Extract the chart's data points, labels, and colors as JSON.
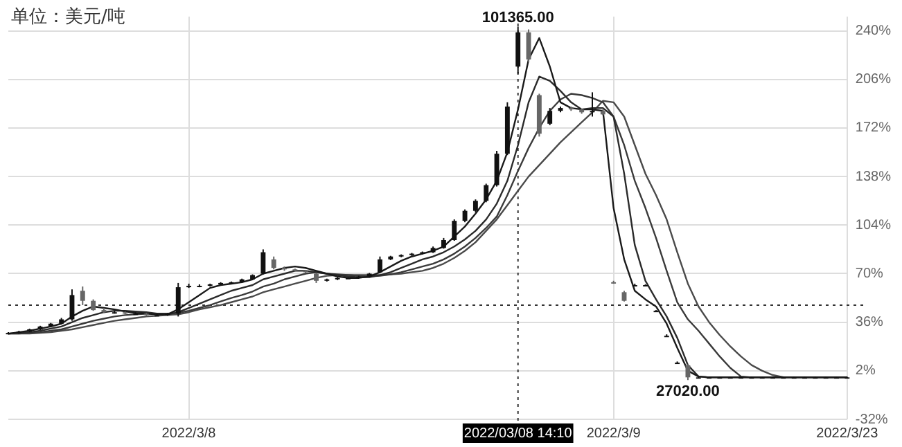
{
  "chart_data": {
    "type": "candlestick",
    "colors": [
      "#111111",
      "#111111",
      "#111111",
      "#111111",
      "#111111",
      "#111111",
      "#111111",
      "#666666",
      "#666666",
      "#666666",
      "#111111",
      "#666666",
      "#111111",
      "#666666",
      "#111111",
      "#111111",
      "#111111",
      "#111111",
      "#111111",
      "#111111",
      "#111111",
      "#111111",
      "#111111",
      "#111111",
      "#111111",
      "#666666",
      "#666666",
      "#666666",
      "#666666",
      "#666666",
      "#111111",
      "#111111",
      "#111111",
      "#111111",
      "#111111",
      "#111111",
      "#111111",
      "#111111",
      "#111111",
      "#111111",
      "#111111",
      "#111111",
      "#111111",
      "#111111",
      "#111111",
      "#111111",
      "#111111",
      "#111111",
      "#111111",
      "#666666",
      "#666666",
      "#111111",
      "#111111",
      "#666666",
      "#666666",
      "#111111",
      "#666666",
      "#666666",
      "#666666",
      "#111111",
      "#111111",
      "#111111",
      "#111111",
      "#111111",
      "#666666",
      "#111111",
      "#111111",
      "#111111",
      "#111111",
      "#111111",
      "#111111",
      "#111111",
      "#111111",
      "#111111",
      "#111111",
      "#111111",
      "#111111",
      "#111111",
      "#111111",
      "#111111"
    ],
    "categories": [
      null,
      null,
      null,
      null,
      null,
      null,
      null,
      null,
      null,
      null,
      null,
      null,
      null,
      null,
      null,
      null,
      null,
      "2022/3/8",
      null,
      null,
      null,
      null,
      null,
      null,
      null,
      null,
      null,
      null,
      null,
      null,
      null,
      null,
      null,
      null,
      null,
      null,
      null,
      null,
      null,
      null,
      null,
      null,
      null,
      null,
      null,
      null,
      null,
      null,
      "2022/03/08 14:10",
      null,
      null,
      null,
      null,
      null,
      null,
      null,
      null,
      "2022/3/9",
      null,
      null,
      null,
      null,
      null,
      null,
      null,
      null,
      null,
      null,
      null,
      null,
      null,
      null,
      null,
      null,
      null,
      null,
      null,
      null,
      null,
      "2022/3/23"
    ],
    "ohlc": [
      [
        28,
        29,
        27.5,
        28.5
      ],
      [
        28.5,
        30,
        28,
        29.5
      ],
      [
        29.5,
        31.5,
        29,
        31
      ],
      [
        31,
        33.5,
        30.5,
        33
      ],
      [
        33,
        35.5,
        32.5,
        35
      ],
      [
        35,
        39,
        34.5,
        38
      ],
      [
        38,
        59,
        37,
        55
      ],
      [
        58,
        61,
        48,
        51
      ],
      [
        51,
        52,
        44,
        44.5
      ],
      [
        44.5,
        46,
        42.5,
        43
      ],
      [
        43,
        44,
        42,
        43
      ],
      [
        43,
        43.5,
        41.5,
        42
      ],
      [
        42,
        43,
        41.5,
        42
      ],
      [
        42,
        42.5,
        40.5,
        41
      ],
      [
        41,
        42,
        40.5,
        41
      ],
      [
        41,
        42.5,
        40.5,
        42
      ],
      [
        42,
        63.5,
        40,
        60.5
      ],
      [
        60.5,
        63,
        60,
        61.5
      ],
      [
        61.5,
        62.5,
        60.5,
        61.5
      ],
      [
        61.5,
        63,
        61,
        62.5
      ],
      [
        62.5,
        64,
        62,
        63.5
      ],
      [
        63.5,
        64.5,
        63,
        64
      ],
      [
        64,
        66.5,
        63.5,
        66
      ],
      [
        66,
        69.5,
        65.5,
        69
      ],
      [
        70,
        87,
        69.5,
        85
      ],
      [
        80,
        82,
        73,
        74
      ],
      [
        74,
        75,
        72,
        73
      ],
      [
        73,
        73.5,
        71.5,
        72
      ],
      [
        72,
        72.5,
        70.5,
        71
      ],
      [
        70,
        70.5,
        63.5,
        65
      ],
      [
        65,
        66.5,
        64.5,
        66
      ],
      [
        66,
        67.5,
        65.5,
        67
      ],
      [
        67,
        67.5,
        66.5,
        67
      ],
      [
        67,
        68.5,
        66.5,
        68
      ],
      [
        68,
        70.5,
        67.5,
        70
      ],
      [
        71,
        82,
        70.5,
        80
      ],
      [
        80,
        82.5,
        79.5,
        82
      ],
      [
        82,
        83.5,
        81.5,
        83
      ],
      [
        83,
        84.5,
        82.5,
        84
      ],
      [
        84,
        85.5,
        83.5,
        85
      ],
      [
        85,
        89,
        84.5,
        88
      ],
      [
        88,
        95,
        87.5,
        93.5
      ],
      [
        93.5,
        108,
        93,
        107
      ],
      [
        107,
        115,
        106,
        114
      ],
      [
        114,
        122,
        113,
        121
      ],
      [
        121,
        133,
        120,
        132
      ],
      [
        132,
        156,
        131,
        154
      ],
      [
        154,
        190,
        153,
        187
      ],
      [
        215,
        243,
        210,
        239
      ],
      [
        239,
        241,
        218,
        220
      ],
      [
        195,
        196,
        166,
        168
      ],
      [
        175,
        186,
        174,
        184
      ],
      [
        184,
        187,
        183,
        186
      ],
      [
        186,
        187,
        184,
        185
      ],
      [
        185,
        185.5,
        182,
        183
      ],
      [
        183,
        197,
        180,
        184
      ],
      [
        184,
        185,
        181,
        181.5
      ],
      [
        64,
        65,
        63,
        63.5
      ],
      [
        57,
        58,
        50.5,
        51
      ],
      [
        62,
        63,
        61.5,
        62
      ],
      [
        62,
        62.5,
        61.5,
        62
      ],
      [
        44,
        44.5,
        43.5,
        44
      ],
      [
        26.5,
        27.5,
        26,
        26.5
      ],
      [
        7.7,
        8.5,
        7,
        7.7
      ],
      [
        5.8,
        6.5,
        -4.5,
        -2.6
      ],
      [
        -2.6,
        -2.2,
        -3,
        -2.6
      ],
      [
        -2.6,
        -2.2,
        -3,
        -2.6
      ],
      [
        -2.6,
        -2.2,
        -3,
        -2.6
      ],
      [
        -2.6,
        -2.2,
        -3,
        -2.6
      ],
      [
        -2.6,
        -2.2,
        -3,
        -2.6
      ],
      [
        -2.6,
        -2.2,
        -3,
        -2.6
      ],
      [
        -2.6,
        -2.2,
        -3,
        -2.6
      ],
      [
        -2.6,
        -2.2,
        -3,
        -2.6
      ],
      [
        -2.6,
        -2.2,
        -3,
        -2.6
      ],
      [
        -2.6,
        -2.2,
        -3,
        -2.6
      ],
      [
        -2.6,
        -2.2,
        -3,
        -2.6
      ],
      [
        -2.6,
        -2.2,
        -3,
        -2.6
      ],
      [
        -2.6,
        -2.2,
        -3,
        -2.6
      ],
      [
        -2.6,
        -2.2,
        -3,
        -2.6
      ],
      [
        -2.6,
        -2.2,
        -3,
        -2.6
      ]
    ],
    "series": [
      {
        "type": "line",
        "color": "#1a1a1a",
        "values": [
          28,
          29,
          30,
          31.5,
          33,
          35,
          40,
          44,
          47,
          46,
          45,
          43.5,
          42.5,
          42,
          41.5,
          41.5,
          45,
          50,
          55,
          60,
          62,
          63,
          64,
          66,
          70,
          72,
          74,
          75,
          74,
          72,
          70,
          68,
          67,
          67,
          68,
          71,
          75,
          79,
          82,
          84,
          86,
          89,
          96,
          103,
          112,
          122,
          135,
          155,
          185,
          220,
          235,
          215,
          190,
          186,
          185,
          185,
          184,
          116,
          80,
          58,
          52,
          47,
          35,
          18,
          2,
          -2,
          -2.6,
          -2.6,
          -2.6,
          -2.6,
          -2.6,
          -2.6,
          -2.6,
          -2.6,
          -2.6,
          -2.6,
          -2.6,
          -2.6,
          -2.6,
          -2.6
        ]
      },
      {
        "type": "line",
        "color": "#2b2b2b",
        "values": [
          28,
          28.5,
          29,
          30,
          31.5,
          33,
          36,
          39,
          41,
          43,
          44,
          44,
          43.5,
          43,
          42,
          41.5,
          43,
          46,
          49,
          52,
          55,
          58,
          60,
          62,
          66,
          68,
          70,
          72,
          72,
          71,
          70,
          69,
          68,
          67.5,
          67.5,
          69,
          71,
          74,
          77,
          80,
          82,
          85,
          89,
          94,
          100,
          108,
          119,
          135,
          160,
          190,
          208,
          205,
          198,
          190,
          185,
          186,
          186,
          180,
          140,
          90,
          65,
          52,
          40,
          25,
          6,
          -2,
          -2.6,
          -2.6,
          -2.6,
          -2.6,
          -2.6,
          -2.6,
          -2.6,
          -2.6,
          -2.6,
          -2.6,
          -2.6,
          -2.6,
          -2.6,
          -2.6
        ]
      },
      {
        "type": "line",
        "color": "#3a3a3a",
        "values": [
          28,
          28,
          28.5,
          29,
          30,
          31,
          33,
          35,
          37,
          38.5,
          40,
          41,
          41.5,
          42,
          42,
          42,
          42.5,
          44,
          46,
          48,
          50.5,
          53,
          55,
          57.5,
          61,
          63,
          66,
          68,
          70,
          71,
          70,
          69.5,
          69,
          68.5,
          68,
          68.5,
          69.5,
          71,
          73,
          75,
          77,
          80,
          84,
          89,
          95,
          102,
          110,
          125,
          142,
          158,
          172,
          184,
          192,
          196,
          195,
          193,
          190,
          180,
          160,
          135,
          116,
          95,
          72,
          50,
          38,
          30,
          21,
          12,
          4,
          -2,
          -2.6,
          -2.6,
          -2.6,
          -2.6,
          -2.6,
          -2.6,
          -2.6,
          -2.6,
          -2.6,
          -2.6
        ]
      },
      {
        "type": "line",
        "color": "#4a4a4a",
        "values": [
          28,
          28,
          28,
          28.5,
          29,
          30,
          31,
          32.5,
          34,
          35.5,
          37,
          38,
          39,
          40,
          40.5,
          41,
          41.5,
          43,
          45,
          46.5,
          48,
          50,
          52,
          54,
          57,
          59,
          61,
          63,
          65,
          67,
          68.5,
          69,
          69,
          69,
          69,
          69,
          69.5,
          70,
          71,
          72,
          74,
          77,
          81,
          86,
          92,
          100,
          108,
          118,
          128,
          138,
          146,
          154,
          162,
          169,
          176,
          183,
          191,
          190,
          180,
          160,
          140,
          125,
          108,
          85,
          63,
          47,
          36,
          27,
          19,
          12,
          6,
          2,
          -1,
          -2.5,
          -2.6,
          -2.6,
          -2.6,
          -2.6,
          -2.6,
          -2.6
        ]
      }
    ],
    "ylim": [
      -32,
      250
    ],
    "yticks": [
      {
        "value": 240,
        "label": "240%"
      },
      {
        "value": 206,
        "label": "206%"
      },
      {
        "value": 172,
        "label": "172%"
      },
      {
        "value": 138,
        "label": "138%"
      },
      {
        "value": 104,
        "label": "104%"
      },
      {
        "value": 70,
        "label": "70%"
      },
      {
        "value": 36,
        "label": "36%"
      },
      {
        "value": 2,
        "label": "2%"
      },
      {
        "value": -32,
        "label": "-32%"
      }
    ],
    "grid": true,
    "marker": "none",
    "ref_lines": [
      {
        "axis": "y",
        "value": 48,
        "line_style": "dotted",
        "color": "#333333"
      },
      {
        "axis": "x",
        "value": "2022/03/08 14:10",
        "line_style": "dotted",
        "color": "#333333"
      }
    ],
    "annotations": [
      "单位：美元/吨",
      {
        "text": "101365.00",
        "x": "2022/03/08 14:10",
        "y": 243
      },
      {
        "text": "27020.00",
        "y": -4.5
      }
    ]
  }
}
